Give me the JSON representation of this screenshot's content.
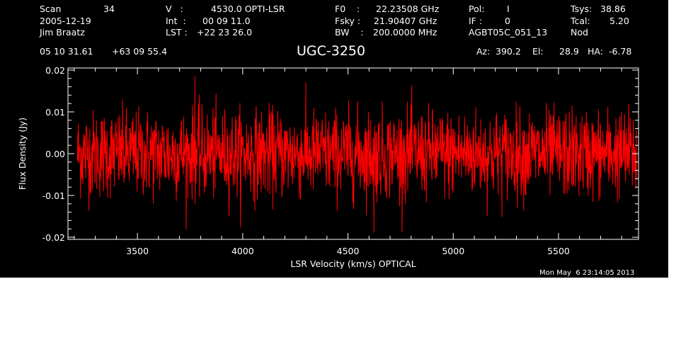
{
  "header": {
    "scan_label": "Scan",
    "scan_value": "34",
    "date": "2005-12-19",
    "observer": "Jim Braatz",
    "v_label": "V   :",
    "v_value": "4530.0 OPTI-LSR",
    "int_label": "Int  :",
    "int_value": "00 09 11.0",
    "lst_label": "LST :",
    "lst_value": "+22 23 26.0",
    "f0_label": "F0    :",
    "f0_value": "22.23508 GHz",
    "fsky_label": "Fsky :",
    "fsky_value": "21.90407 GHz",
    "bw_label": "BW    :",
    "bw_value": "200.0000 MHz",
    "pol_label": "Pol:",
    "pol_value": "I",
    "if_label": "IF :",
    "if_value": "0",
    "project": "AGBT05C_051_13",
    "tsys_label": "Tsys:",
    "tsys_value": "38.86",
    "tcal_label": "Tcal:",
    "tcal_value": "5.20",
    "proc": "Nod",
    "ra": "05 10 31.61",
    "dec": "+63 09 55.4",
    "source": "UGC-3250",
    "az_label": "Az:",
    "az_value": "390.2",
    "el_label": "El:",
    "el_value": "28.9",
    "ha_label": "HA:",
    "ha_value": "-6.78"
  },
  "footer": {
    "timestamp": "Mon May  6 23:14:05 2013"
  },
  "colors": {
    "background": "#000000",
    "axes": "#ffffff",
    "trace": "#ff0000"
  },
  "chart_data": {
    "type": "line",
    "xlabel": "LSR Velocity (km/s) OPTICAL",
    "ylabel": "Flux Density (Jy)",
    "xlim": [
      3170,
      5880
    ],
    "ylim": [
      -0.0205,
      0.0205
    ],
    "x_ticks": [
      3500,
      4000,
      4500,
      5000,
      5500
    ],
    "x_tick_labels": [
      "3500",
      "4000",
      "4500",
      "5000",
      "5500"
    ],
    "x_minor_step": 100,
    "y_ticks": [
      -0.02,
      -0.01,
      0.0,
      0.01,
      0.02
    ],
    "y_tick_labels": [
      "-0.02",
      "-0.01",
      "0.00",
      "0.01",
      "0.02"
    ],
    "y_minor_step": 0.002,
    "grid": false,
    "series": [
      {
        "x_start": 3215,
        "x_end": 5870,
        "points": 1800,
        "mean": 0.0,
        "rms": 0.0052,
        "min": -0.0188,
        "max": 0.0185,
        "color": "#ff0000"
      }
    ]
  }
}
